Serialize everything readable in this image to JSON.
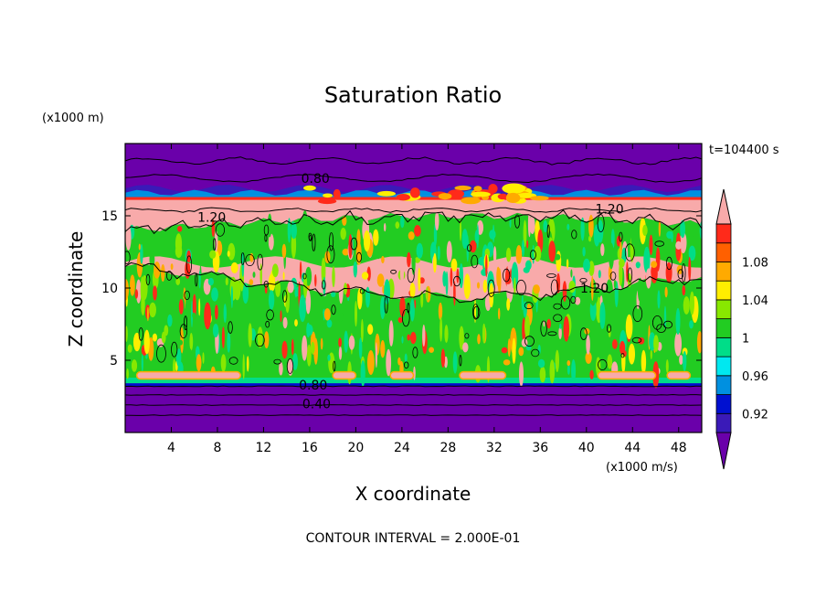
{
  "chart_data": {
    "type": "heatmap",
    "title": "Saturation Ratio",
    "xlabel": "X coordinate",
    "ylabel": "Z coordinate",
    "x_unit": "(x1000 m/s)",
    "y_unit": "(x1000 m)",
    "time_label": "t=104400 s",
    "footer": "CONTOUR INTERVAL = 2.000E-01",
    "xlim": [
      0,
      50
    ],
    "ylim": [
      0,
      20
    ],
    "x_ticks": [
      4,
      8,
      12,
      16,
      20,
      24,
      28,
      32,
      36,
      40,
      44,
      48
    ],
    "y_ticks": [
      5,
      10,
      15
    ],
    "contour_labels": [
      {
        "text": "0.80",
        "x": 16.5,
        "z": 17.4
      },
      {
        "text": "1.20",
        "x": 7.5,
        "z": 14.7
      },
      {
        "text": "1.20",
        "x": 42.0,
        "z": 15.3
      },
      {
        "text": "1.20",
        "x": 40.7,
        "z": 9.8
      },
      {
        "text": "0.80",
        "x": 16.3,
        "z": 3.1
      },
      {
        "text": "0.40",
        "x": 16.6,
        "z": 1.8
      }
    ],
    "colorbar": {
      "levels": [
        0.92,
        0.96,
        1,
        1.04,
        1.08
      ],
      "level_labels": [
        "0.92",
        "0.96",
        "1",
        "1.04",
        "1.08"
      ],
      "bins": [
        {
          "color": "#6a00aa"
        },
        {
          "color": "#3a1ab8"
        },
        {
          "color": "#0010d0"
        },
        {
          "color": "#0090e0"
        },
        {
          "color": "#00e8f0"
        },
        {
          "color": "#00dd88"
        },
        {
          "color": "#22cc22"
        },
        {
          "color": "#88e800"
        },
        {
          "color": "#ffee00"
        },
        {
          "color": "#ffaa00"
        },
        {
          "color": "#ff6000"
        },
        {
          "color": "#ff2a1a"
        },
        {
          "color": "#f8aaaa"
        }
      ]
    }
  }
}
